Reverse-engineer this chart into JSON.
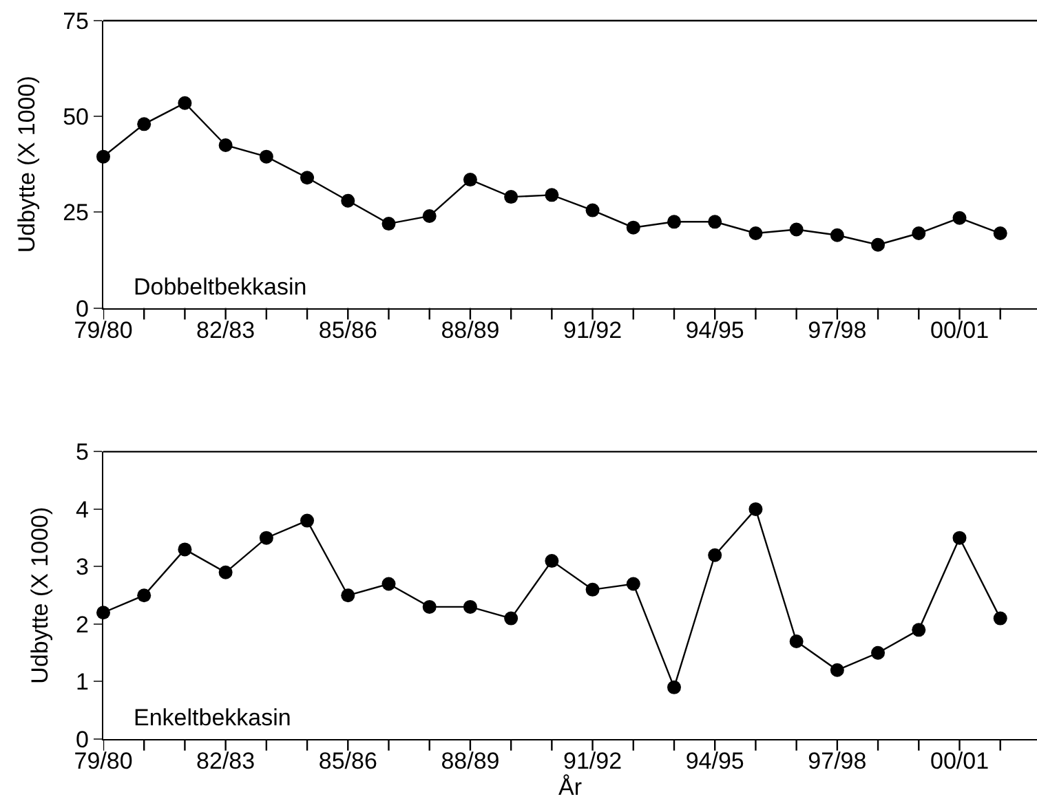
{
  "chart_data": [
    {
      "type": "line",
      "categories": [
        "79/80",
        null,
        null,
        "82/83",
        null,
        null,
        "85/86",
        null,
        null,
        "88/89",
        null,
        null,
        "91/92",
        null,
        null,
        "94/95",
        null,
        null,
        "97/98",
        null,
        null,
        "00/01",
        null
      ],
      "series": [
        {
          "color": "#000000",
          "values": [
            39.5,
            48,
            53.5,
            42.5,
            39.5,
            34,
            28,
            22,
            24,
            33.5,
            29,
            29.5,
            25.5,
            21,
            22.5,
            22.5,
            19.5,
            20.5,
            19,
            16.5,
            19.5,
            23.5,
            19.5
          ]
        }
      ],
      "ylabel": "Udbytte (X 1000)",
      "ylim": [
        0,
        75
      ],
      "yticks": [
        0,
        25,
        50,
        75
      ],
      "marker": "circle",
      "line_style": "solid",
      "annotations": [
        "Dobbeltbekkasin"
      ]
    },
    {
      "type": "line",
      "categories": [
        "79/80",
        null,
        null,
        "82/83",
        null,
        null,
        "85/86",
        null,
        null,
        "88/89",
        null,
        null,
        "91/92",
        null,
        null,
        "94/95",
        null,
        null,
        "97/98",
        null,
        null,
        "00/01",
        null
      ],
      "series": [
        {
          "color": "#000000",
          "values": [
            2.2,
            2.5,
            3.3,
            2.9,
            3.5,
            3.8,
            2.5,
            2.7,
            2.3,
            2.3,
            2.1,
            3.1,
            2.6,
            2.7,
            0.9,
            3.2,
            4.0,
            1.7,
            1.2,
            1.5,
            1.9,
            3.5,
            2.1
          ]
        }
      ],
      "xlabel": "År",
      "ylabel": "Udbytte (X 1000)",
      "ylim": [
        0,
        5
      ],
      "yticks": [
        0,
        1,
        2,
        3,
        4,
        5
      ],
      "marker": "circle",
      "line_style": "solid",
      "annotations": [
        "Enkeltbekkasin"
      ]
    }
  ]
}
